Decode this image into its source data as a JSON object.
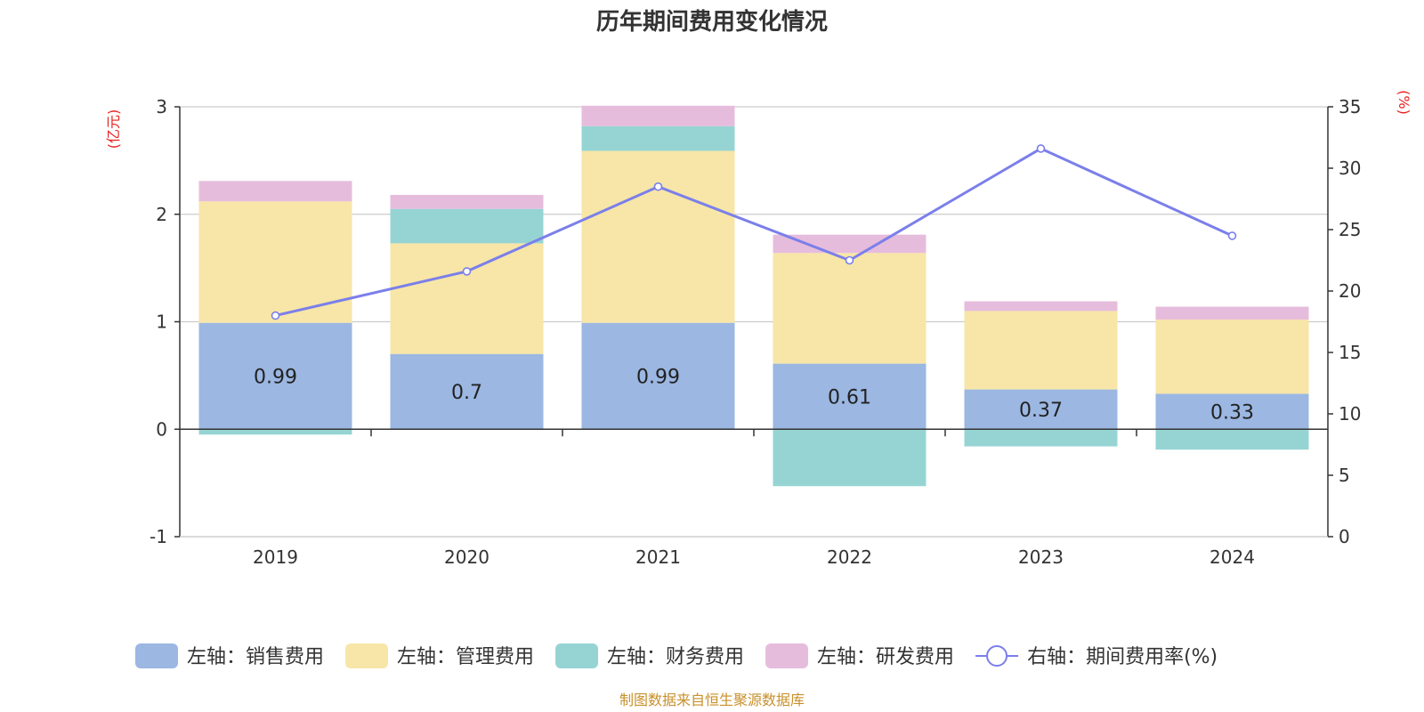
{
  "chart_data": {
    "type": "bar",
    "title": "历年期间费用变化情况",
    "categories": [
      "2019",
      "2020",
      "2021",
      "2022",
      "2023",
      "2024"
    ],
    "left_axis": {
      "unit_label": "(亿元)",
      "ylim": [
        -1,
        3
      ],
      "ticks": [
        "-1",
        "0",
        "1",
        "2",
        "3"
      ]
    },
    "right_axis": {
      "unit_label": "(%)",
      "ylim": [
        0,
        35
      ],
      "ticks": [
        "0",
        "5",
        "10",
        "15",
        "20",
        "25",
        "30",
        "35"
      ]
    },
    "stacked_series": [
      {
        "name": "左轴：销售费用",
        "color": "#9bb7e2",
        "values": [
          0.99,
          0.7,
          0.99,
          0.61,
          0.37,
          0.33
        ],
        "labels": [
          "0.99",
          "0.7",
          "0.99",
          "0.61",
          "0.37",
          "0.33"
        ]
      },
      {
        "name": "左轴：管理费用",
        "color": "#f7e6a7",
        "values": [
          1.13,
          1.03,
          1.6,
          1.03,
          0.73,
          0.69
        ]
      },
      {
        "name": "左轴：财务费用",
        "color": "#96d4d4",
        "values": [
          -0.05,
          0.32,
          0.23,
          -0.53,
          -0.16,
          -0.19
        ]
      },
      {
        "name": "左轴：研发费用",
        "color": "#e6bcdc",
        "values": [
          0.19,
          0.13,
          0.19,
          0.17,
          0.09,
          0.12
        ]
      }
    ],
    "line_series": {
      "name": "右轴：期间费用率(%)",
      "color": "#7b7fea",
      "values": [
        18.0,
        21.6,
        28.5,
        22.5,
        31.6,
        24.5
      ]
    },
    "grid": true
  },
  "footer": {
    "source": "制图数据来自恒生聚源数据库"
  }
}
